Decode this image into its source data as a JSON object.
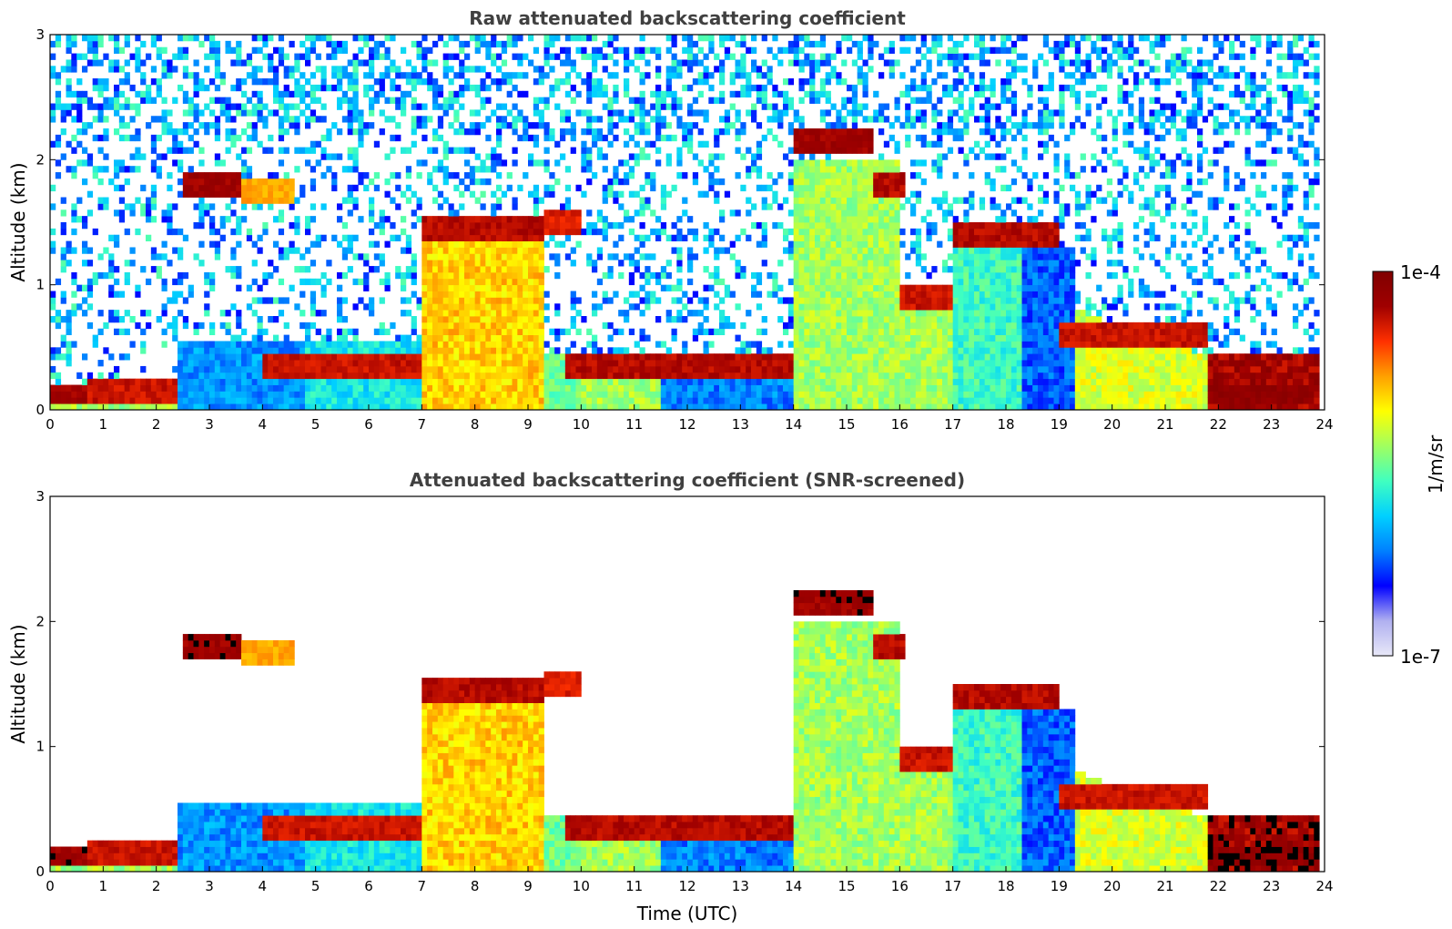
{
  "chart_data": [
    {
      "type": "heatmap",
      "title": "Raw attenuated backscattering coefficient",
      "xlabel": "",
      "ylabel": "Altitude (km)",
      "xlim": [
        0,
        24
      ],
      "ylim": [
        0,
        3
      ],
      "xticks": [
        "0",
        "1",
        "2",
        "3",
        "4",
        "5",
        "6",
        "7",
        "8",
        "9",
        "10",
        "11",
        "12",
        "13",
        "14",
        "15",
        "16",
        "17",
        "18",
        "19",
        "20",
        "21",
        "22",
        "23",
        "24"
      ],
      "yticks": [
        "0",
        "1",
        "2",
        "3"
      ],
      "screened": false,
      "layers": [
        {
          "t0": 0.0,
          "t1": 0.7,
          "alt": 0.12,
          "level": 0.95
        },
        {
          "t0": 0.7,
          "t1": 2.4,
          "alt": 0.15,
          "level": 0.9
        },
        {
          "t0": 2.5,
          "t1": 3.6,
          "alt": 1.8,
          "level": 0.95
        },
        {
          "t0": 3.6,
          "t1": 4.6,
          "alt": 1.75,
          "level": 0.75
        },
        {
          "t0": 4.0,
          "t1": 7.0,
          "alt": 0.35,
          "level": 0.9
        },
        {
          "t0": 7.0,
          "t1": 9.3,
          "alt": 1.45,
          "level": 0.92
        },
        {
          "t0": 9.3,
          "t1": 10.0,
          "alt": 1.5,
          "level": 0.88
        },
        {
          "t0": 9.7,
          "t1": 14.0,
          "alt": 0.35,
          "level": 0.92
        },
        {
          "t0": 14.0,
          "t1": 15.5,
          "alt": 2.15,
          "level": 0.95
        },
        {
          "t0": 15.5,
          "t1": 16.1,
          "alt": 1.8,
          "level": 0.92
        },
        {
          "t0": 16.0,
          "t1": 17.0,
          "alt": 0.9,
          "level": 0.9
        },
        {
          "t0": 17.0,
          "t1": 19.0,
          "alt": 1.4,
          "level": 0.92
        },
        {
          "t0": 19.0,
          "t1": 21.8,
          "alt": 0.6,
          "level": 0.9
        },
        {
          "t0": 21.8,
          "t1": 23.8,
          "alt": 0.12,
          "level": 0.98
        }
      ]
    },
    {
      "type": "heatmap",
      "title": "Attenuated backscattering coefficient (SNR-screened)",
      "xlabel": "Time (UTC)",
      "ylabel": "Altitude (km)",
      "xlim": [
        0,
        24
      ],
      "ylim": [
        0,
        3
      ],
      "xticks": [
        "0",
        "1",
        "2",
        "3",
        "4",
        "5",
        "6",
        "7",
        "8",
        "9",
        "10",
        "11",
        "12",
        "13",
        "14",
        "15",
        "16",
        "17",
        "18",
        "19",
        "20",
        "21",
        "22",
        "23",
        "24"
      ],
      "yticks": [
        "0",
        "1",
        "2",
        "3"
      ],
      "screened": true
    }
  ],
  "colorbar": {
    "label": "1/m/sr",
    "max_label": "1e-4",
    "min_label": "1e-7",
    "colormap": "jet",
    "colors": [
      "#e8e8f8",
      "#b0b0f0",
      "#0000ff",
      "#0080ff",
      "#00d0ff",
      "#40ffc0",
      "#a0ff60",
      "#ffff00",
      "#ffa000",
      "#ff3000",
      "#a00000",
      "#800000"
    ]
  }
}
